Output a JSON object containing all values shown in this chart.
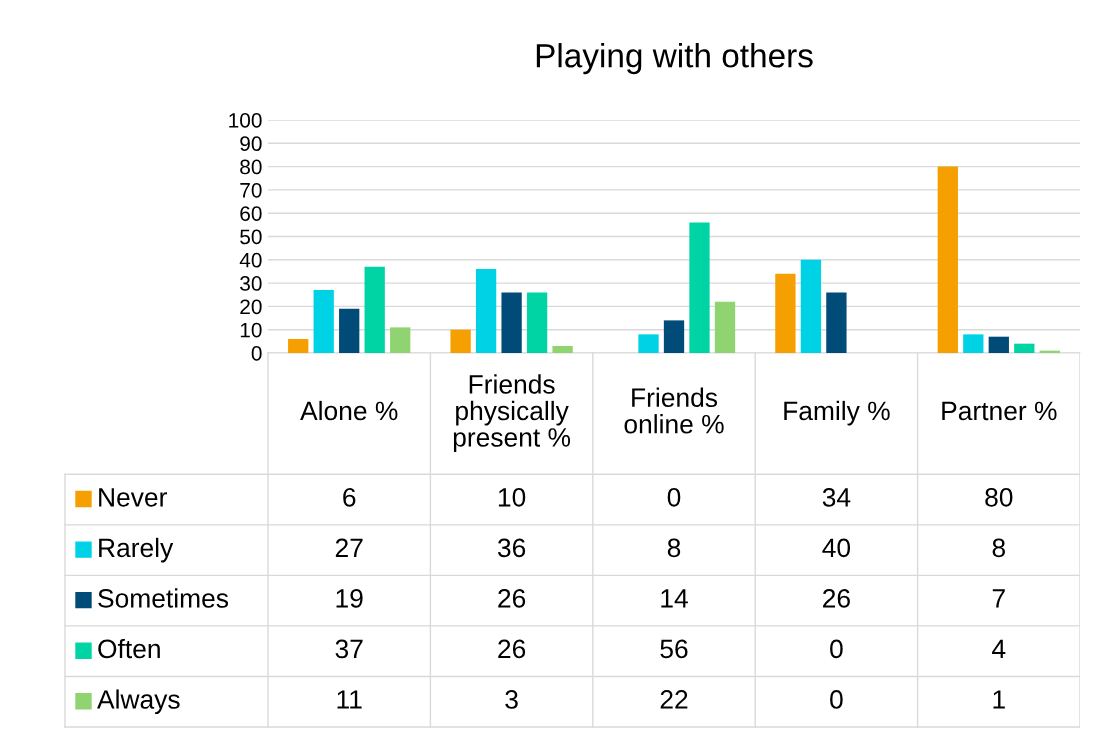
{
  "chart_data": {
    "type": "bar",
    "title": "Playing with others",
    "categories": [
      "Alone %",
      "Friends\nphysically\npresent %",
      "Friends\nonline %",
      "Family %",
      "Partner %"
    ],
    "series": [
      {
        "name": "Never",
        "color": "#f5a000",
        "values": [
          6,
          10,
          0,
          34,
          80
        ]
      },
      {
        "name": "Rarely",
        "color": "#00d2e6",
        "values": [
          27,
          36,
          8,
          40,
          8
        ]
      },
      {
        "name": "Sometimes",
        "color": "#004b78",
        "values": [
          19,
          26,
          14,
          26,
          7
        ]
      },
      {
        "name": "Often",
        "color": "#00d4a5",
        "values": [
          37,
          26,
          56,
          0,
          4
        ]
      },
      {
        "name": "Always",
        "color": "#8fd470",
        "values": [
          11,
          3,
          22,
          0,
          1
        ]
      }
    ],
    "ylim": [
      0,
      100
    ],
    "yticks": [
      0,
      10,
      20,
      30,
      40,
      50,
      60,
      70,
      80,
      90,
      100
    ],
    "grid": "y",
    "data_labels": true,
    "legend": "bottom left"
  }
}
